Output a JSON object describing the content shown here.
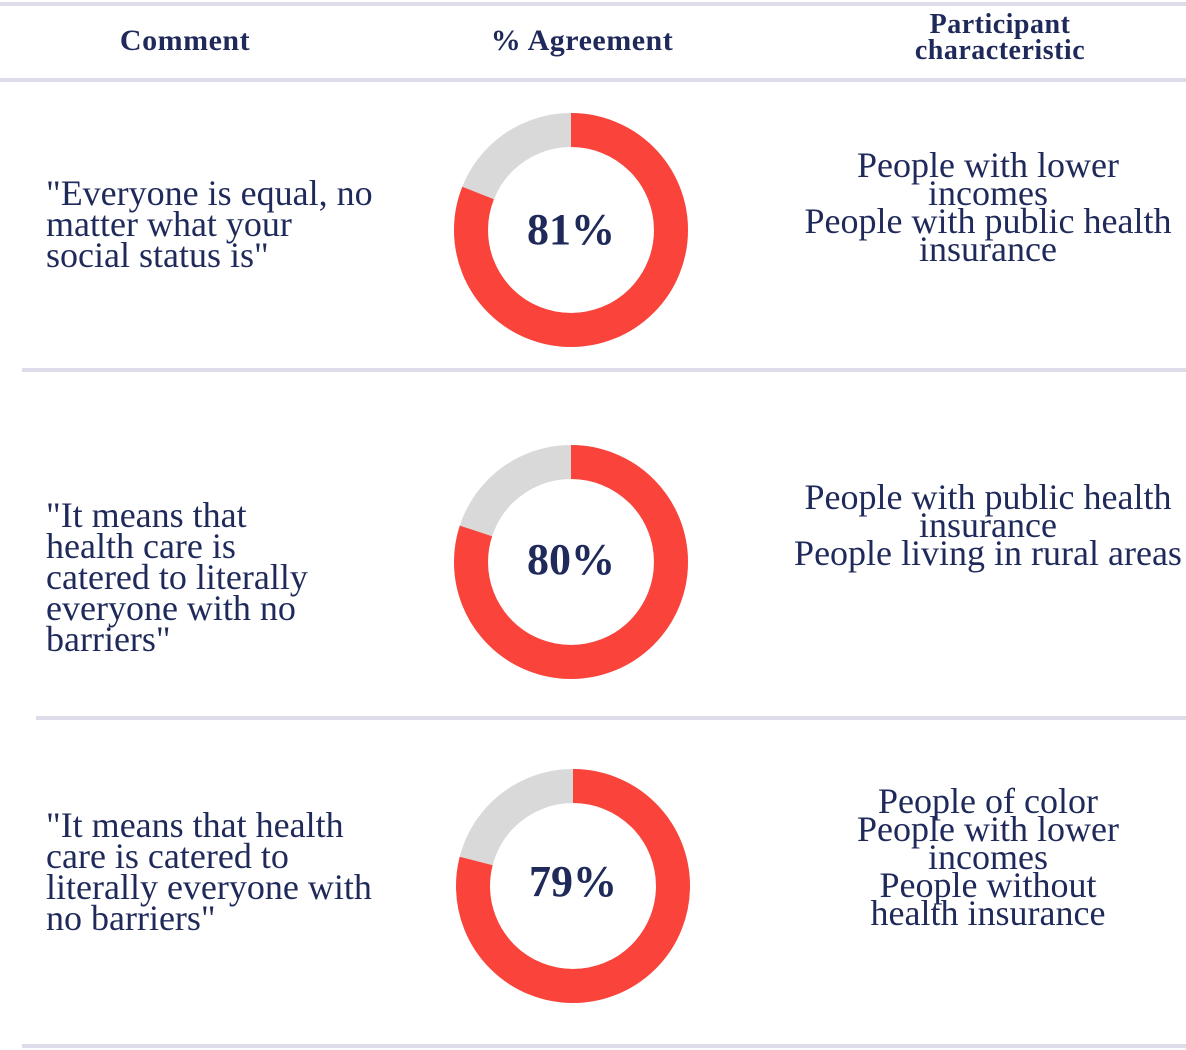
{
  "header": {
    "comment": "Comment",
    "agreement": "% Agreement",
    "participant_line1": "Participant",
    "participant_line2": "characteristic"
  },
  "colors": {
    "agree": "#fa443b",
    "remainder": "#d9d9d9",
    "text": "#1f2a5a",
    "rule": "#dcdcea"
  },
  "rows": [
    {
      "comment_lines": [
        "\"Everyone is equal, no",
        "matter what your",
        "social status is\""
      ],
      "agreement_label": "81%",
      "participants": [
        "People with lower",
        "incomes",
        "People with public health",
        "insurance"
      ]
    },
    {
      "comment_lines": [
        "\"It means that",
        "health care is",
        "catered to literally",
        "everyone with no",
        "barriers\""
      ],
      "agreement_label": "80%",
      "participants": [
        "People with public health",
        "insurance",
        "People living in rural areas"
      ]
    },
    {
      "comment_lines": [
        "\"It means that health",
        "care is catered to",
        "literally everyone with",
        "no barriers\""
      ],
      "agreement_label": "79%",
      "participants": [
        "People of color",
        "People with lower",
        "incomes",
        "People without",
        "health insurance"
      ]
    }
  ],
  "chart_data": {
    "type": "pie",
    "charts": [
      {
        "label": "81%",
        "values": [
          81,
          19
        ]
      },
      {
        "label": "80%",
        "values": [
          80,
          20
        ]
      },
      {
        "label": "79%",
        "values": [
          79,
          21
        ]
      }
    ]
  }
}
